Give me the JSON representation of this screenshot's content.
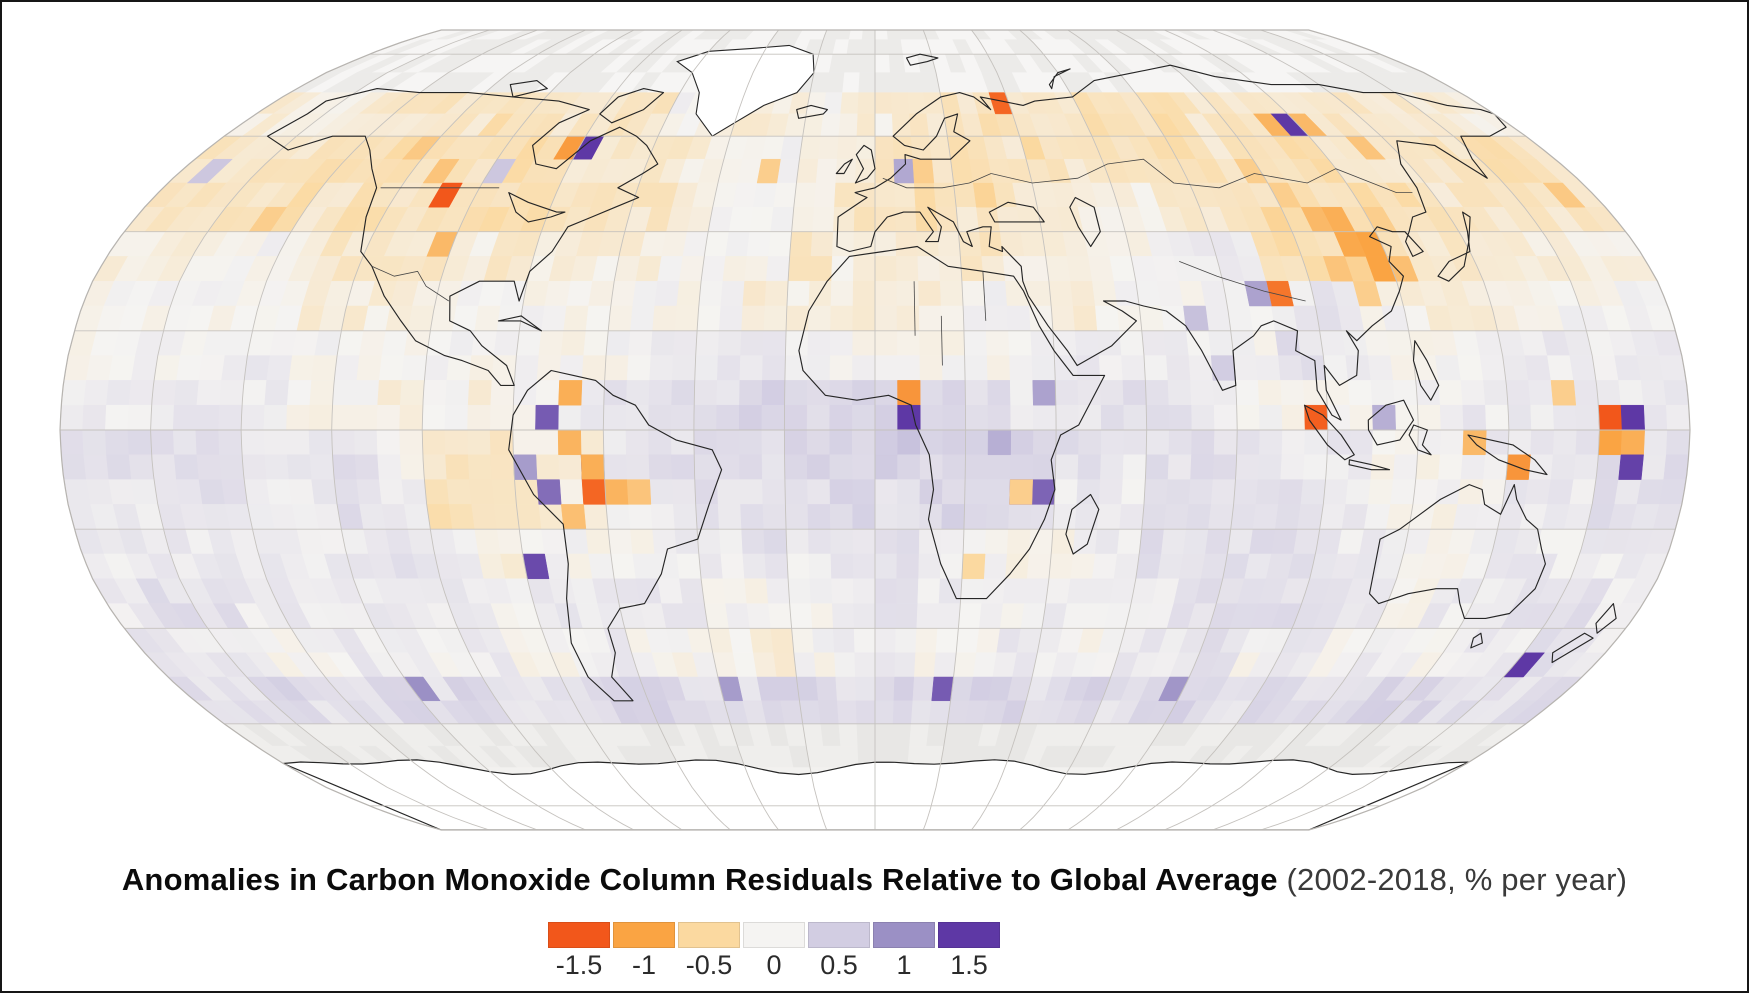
{
  "figure": {
    "title_bold": "Anomalies in Carbon Monoxide Column Residuals Relative to Global Average",
    "title_regular": " (2002-2018, % per year)"
  },
  "chart_data": {
    "type": "heatmap",
    "subtype": "gridded-world-map",
    "projection": "robinson",
    "title": "Anomalies in Carbon Monoxide Column Residuals Relative to Global Average",
    "subtitle": "(2002-2018, % per year)",
    "units": "% per year",
    "period": "2002-2018",
    "legend": {
      "position": "bottom-center",
      "tick_labels": [
        "-1.5",
        "-1",
        "-0.5",
        "0",
        "0.5",
        "1",
        "1.5"
      ],
      "tick_values": [
        -1.5,
        -1,
        -0.5,
        0,
        0.5,
        1,
        1.5
      ],
      "colors": [
        "#F2571B",
        "#FAA443",
        "#FBD9A0",
        "#F5F4F2",
        "#D2CDE2",
        "#9B90C5",
        "#5E38A5"
      ]
    },
    "no_data_color_light": "#f4f3f2",
    "no_data_color_gray": "#e9e8e6",
    "graticule": {
      "meridian_step_deg": 20,
      "parallel_step_deg": 20,
      "color": "#c5c2be"
    },
    "coastline_color": "#262626",
    "grid": {
      "comment": "Coarse 10-degree anomaly field read from the map. 36 columns (180W..180E) x 13 rows (70N..60S). Each hex char c encodes value = (parseInt(c,16)-8)/8  %/yr. Negative=orange (declining faster), positive=purple.",
      "lon_start": -180,
      "lat_start": 70,
      "cell_deg": 10,
      "render_cell_deg": 5,
      "rows": [
        "777666656666877787766566565666666677",
        "666555565566678877665656655655666656",
        "666565655566678876656667766655556666",
        "777876667677788867776778899554666777",
        "8888877788888887777788788889a8777888",
        "888998888888899988888899998a98889999",
        "999998878789aaabbbbba99aa98788899999",
        "aaaa99a866779aaabbcbbba9aaa998899aaa",
        "99aa99a9566789aaababba99aaaa988899aa",
        "9999999a9788899a99a98789aaaa99889999",
        "9aa999999899998889a988999aaaa9899aa9",
        "a9988998988988878998899899a8989899a9",
        "aabaababaaabbaabbababbababbabaabbaab"
      ]
    },
    "hotspots": {
      "comment": "Saturated single 5-degree cells visible on the map: [lon, lat, value %/yr]",
      "cells": [
        [
          -106,
          48,
          -1.5
        ],
        [
          -102,
          39,
          -0.8
        ],
        [
          -85,
          58,
          -1.05
        ],
        [
          -80,
          58,
          1.5
        ],
        [
          -97,
          55,
          0.55
        ],
        [
          -112,
          53,
          -0.7
        ],
        [
          -122,
          57,
          -0.65
        ],
        [
          -30,
          52,
          -0.6
        ],
        [
          37,
          68,
          -1.4
        ],
        [
          6,
          51,
          0.8
        ],
        [
          14,
          52,
          -0.6
        ],
        [
          25,
          48,
          -0.55
        ],
        [
          40,
          56,
          -0.5
        ],
        [
          118,
          62,
          1.5
        ],
        [
          112,
          63,
          -0.85
        ],
        [
          124,
          62,
          -0.8
        ],
        [
          131,
          58,
          -0.7
        ],
        [
          95,
          55,
          -0.6
        ],
        [
          103,
          47,
          -0.6
        ],
        [
          108,
          44,
          -0.8
        ],
        [
          113,
          42,
          -0.9
        ],
        [
          118,
          40,
          -1.0
        ],
        [
          112,
          37,
          -0.95
        ],
        [
          117,
          34,
          -1.0
        ],
        [
          121,
          32,
          -0.75
        ],
        [
          107,
          33,
          -0.7
        ],
        [
          113,
          28,
          -0.6
        ],
        [
          97,
          43,
          -0.55
        ],
        [
          122,
          43,
          -0.6
        ],
        [
          94,
          27,
          -1.3
        ],
        [
          89,
          28,
          0.85
        ],
        [
          74,
          22,
          0.6
        ],
        [
          77,
          13,
          0.5
        ],
        [
          97,
          2,
          -1.45
        ],
        [
          113,
          3,
          0.75
        ],
        [
          142,
          -7,
          -1.1
        ],
        [
          133,
          -3,
          -0.8
        ],
        [
          152,
          9,
          -0.6
        ],
        [
          162,
          4,
          -1.5
        ],
        [
          167,
          4,
          1.55
        ],
        [
          163,
          -2,
          -1.0
        ],
        [
          168,
          -2,
          -0.9
        ],
        [
          166,
          -7,
          1.45
        ],
        [
          8,
          9,
          -1.1
        ],
        [
          9,
          4,
          1.5
        ],
        [
          37,
          10,
          0.85
        ],
        [
          30,
          -11,
          1.3
        ],
        [
          36,
          -13,
          1.25
        ],
        [
          33,
          -12,
          -0.6
        ],
        [
          28,
          -4,
          0.75
        ],
        [
          23,
          -28,
          -0.5
        ],
        [
          -67,
          6,
          -0.9
        ],
        [
          -73,
          3,
          1.3
        ],
        [
          -70,
          -1,
          -0.85
        ],
        [
          -61,
          -6,
          1.5
        ],
        [
          -64,
          -9,
          -0.9
        ],
        [
          -57,
          -11,
          -0.85
        ],
        [
          -62,
          -14,
          -1.4
        ],
        [
          -54,
          -14,
          -0.7
        ],
        [
          -76,
          -9,
          0.9
        ],
        [
          -77,
          -29,
          1.4
        ],
        [
          -72,
          -12,
          1.2
        ],
        [
          -67,
          -17,
          -0.75
        ],
        [
          164,
          -46,
          1.5
        ],
        [
          15,
          -54,
          1.3
        ],
        [
          75,
          -53,
          0.95
        ],
        [
          -120,
          -53,
          1.0
        ],
        [
          -37,
          -53,
          0.9
        ],
        [
          -172,
          52,
          0.55
        ],
        [
          -150,
          45,
          -0.6
        ],
        [
          170,
          46,
          -0.65
        ]
      ]
    },
    "data_coverage": {
      "north_limit_deg": 70,
      "south_limit_deg": -60,
      "polar_fill": "no-data gray/white"
    }
  }
}
